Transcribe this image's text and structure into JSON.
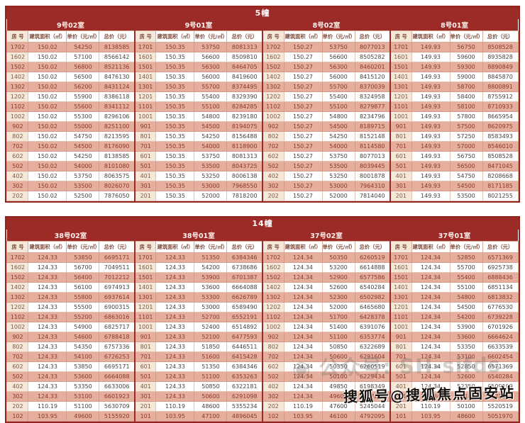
{
  "colors": {
    "accent_red": "#9c2a26",
    "row_pink": "#e5ae9d",
    "room_cream": "#f6e8d8",
    "row_text_pink": "#8a3a2c",
    "row_text_white": "#4a423e"
  },
  "columns": [
    "房 号",
    "建筑面积（㎡）",
    "单价（元/㎡）",
    "总价（元）"
  ],
  "watermarks": {
    "social": "◉ 公众号: SH-sifds",
    "sohu": "搜狐号@搜狐焦点固安站"
  },
  "tables": [
    {
      "title": "5幢",
      "sections": [
        {
          "name": "9号02室",
          "rows": [
            [
              "1702",
              "150.02",
              "54250",
              "8138585"
            ],
            [
              "1602",
              "150.02",
              "57100",
              "8566142"
            ],
            [
              "1502",
              "150.02",
              "56800",
              "8521136"
            ],
            [
              "1402",
              "150.02",
              "56500",
              "8476130"
            ],
            [
              "1302",
              "150.02",
              "56200",
              "8431124"
            ],
            [
              "1202",
              "150.02",
              "55900",
              "8386118"
            ],
            [
              "1102",
              "150.02",
              "55600",
              "8341112"
            ],
            [
              "1002",
              "150.02",
              "55300",
              "8296106"
            ],
            [
              "902",
              "150.02",
              "55000",
              "8251100"
            ],
            [
              "802",
              "150.02",
              "54750",
              "8213595"
            ],
            [
              "702",
              "150.02",
              "54500",
              "8176090"
            ],
            [
              "602",
              "150.02",
              "54250",
              "8138585"
            ],
            [
              "502",
              "150.02",
              "54000",
              "8101080"
            ],
            [
              "402",
              "150.02",
              "53750",
              "8063575"
            ],
            [
              "302",
              "150.02",
              "53500",
              "8026070"
            ],
            [
              "202",
              "150.02",
              "52500",
              "7876050"
            ]
          ]
        },
        {
          "name": "9号01室",
          "rows": [
            [
              "1701",
              "150.35",
              "53750",
              "8081313"
            ],
            [
              "1601",
              "150.35",
              "56600",
              "8509810"
            ],
            [
              "1501",
              "150.35",
              "56300",
              "8464705"
            ],
            [
              "1401",
              "150.35",
              "56000",
              "8419600"
            ],
            [
              "1301",
              "150.35",
              "55700",
              "8374495"
            ],
            [
              "1201",
              "150.35",
              "55400",
              "8329390"
            ],
            [
              "1101",
              "150.35",
              "55100",
              "8284285"
            ],
            [
              "1001",
              "150.35",
              "54800",
              "8239180"
            ],
            [
              "901",
              "150.35",
              "54500",
              "8194075"
            ],
            [
              "801",
              "150.35",
              "54250",
              "8156488"
            ],
            [
              "701",
              "150.35",
              "54000",
              "8118900"
            ],
            [
              "601",
              "150.35",
              "53750",
              "8081313"
            ],
            [
              "501",
              "150.35",
              "53500",
              "8043725"
            ],
            [
              "401",
              "150.35",
              "53250",
              "8006138"
            ],
            [
              "301",
              "150.35",
              "53000",
              "7968550"
            ],
            [
              "201",
              "150.35",
              "52000",
              "7818200"
            ]
          ]
        },
        {
          "name": "8号02室",
          "rows": [
            [
              "1702",
              "150.27",
              "53750",
              "8077013"
            ],
            [
              "1602",
              "150.27",
              "56600",
              "8505282"
            ],
            [
              "1502",
              "150.27",
              "56300",
              "8460201"
            ],
            [
              "1402",
              "150.27",
              "56000",
              "8415120"
            ],
            [
              "1302",
              "150.27",
              "55700",
              "8370039"
            ],
            [
              "1202",
              "150.27",
              "55400",
              "8324958"
            ],
            [
              "1102",
              "150.27",
              "55100",
              "8279877"
            ],
            [
              "1002",
              "150.27",
              "54800",
              "8234796"
            ],
            [
              "902",
              "150.27",
              "54500",
              "8189715"
            ],
            [
              "802",
              "150.27",
              "54250",
              "8152148"
            ],
            [
              "702",
              "150.27",
              "54000",
              "8114580"
            ],
            [
              "602",
              "150.27",
              "53750",
              "8077013"
            ],
            [
              "502",
              "150.27",
              "53500",
              "8039445"
            ],
            [
              "402",
              "150.27",
              "53250",
              "8001878"
            ],
            [
              "302",
              "150.27",
              "53000",
              "7964310"
            ],
            [
              "202",
              "150.27",
              "52000",
              "7814040"
            ]
          ]
        },
        {
          "name": "8号01室",
          "rows": [
            [
              "1701",
              "149.93",
              "56750",
              "8508528"
            ],
            [
              "1601",
              "149.93",
              "59600",
              "8935828"
            ],
            [
              "1501",
              "149.93",
              "59300",
              "8890849"
            ],
            [
              "1401",
              "149.93",
              "59000",
              "8845870"
            ],
            [
              "1301",
              "149.93",
              "58700",
              "8800891"
            ],
            [
              "1201",
              "149.93",
              "58400",
              "8755912"
            ],
            [
              "1101",
              "149.93",
              "58100",
              "8710933"
            ],
            [
              "1001",
              "149.93",
              "57800",
              "8665954"
            ],
            [
              "901",
              "149.93",
              "57500",
              "8620975"
            ],
            [
              "801",
              "149.93",
              "57250",
              "8583493"
            ],
            [
              "701",
              "149.93",
              "57000",
              "8546010"
            ],
            [
              "601",
              "149.93",
              "56750",
              "8508528"
            ],
            [
              "501",
              "149.93",
              "56500",
              "8471045"
            ],
            [
              "401",
              "149.93",
              "54750",
              "8208668"
            ],
            [
              "301",
              "149.93",
              "54500",
              "8171185"
            ],
            [
              "201",
              "149.93",
              "53500",
              "8021255"
            ]
          ]
        }
      ]
    },
    {
      "title": "14幢",
      "sections": [
        {
          "name": "38号02室",
          "rows": [
            [
              "1702",
              "124.33",
              "53850",
              "6695171"
            ],
            [
              "1602",
              "124.33",
              "56700",
              "7049511"
            ],
            [
              "1502",
              "124.33",
              "56400",
              "7012212"
            ],
            [
              "1402",
              "124.33",
              "56100",
              "6974913"
            ],
            [
              "1302",
              "124.33",
              "55800",
              "6937614"
            ],
            [
              "1202",
              "124.33",
              "55500",
              "6900315"
            ],
            [
              "1102",
              "124.33",
              "55200",
              "6863016"
            ],
            [
              "1002",
              "124.33",
              "54900",
              "6825717"
            ],
            [
              "902",
              "124.33",
              "54600",
              "6788418"
            ],
            [
              "802",
              "124.33",
              "54350",
              "6757336"
            ],
            [
              "702",
              "124.33",
              "54100",
              "6726253"
            ],
            [
              "602",
              "124.33",
              "53850",
              "6695171"
            ],
            [
              "502",
              "124.33",
              "53600",
              "6664088"
            ],
            [
              "402",
              "124.33",
              "53350",
              "6633006"
            ],
            [
              "302",
              "124.33",
              "53100",
              "6601923"
            ],
            [
              "202",
              "110.19",
              "51100",
              "5630709"
            ],
            [
              "102",
              "103.95",
              "49600",
              "5155920"
            ]
          ]
        },
        {
          "name": "38号01室",
          "rows": [
            [
              "1701",
              "124.33",
              "51350",
              "6384346"
            ],
            [
              "1601",
              "124.33",
              "54200",
              "6738686"
            ],
            [
              "1501",
              "124.33",
              "53900",
              "6701387"
            ],
            [
              "1401",
              "124.33",
              "53600",
              "6664088"
            ],
            [
              "1301",
              "124.33",
              "53300",
              "6626789"
            ],
            [
              "1201",
              "124.33",
              "53000",
              "6589490"
            ],
            [
              "1101",
              "124.33",
              "52700",
              "6552191"
            ],
            [
              "1001",
              "124.33",
              "52400",
              "6514892"
            ],
            [
              "901",
              "124.33",
              "52100",
              "6477593"
            ],
            [
              "801",
              "124.33",
              "51850",
              "6446511"
            ],
            [
              "701",
              "124.33",
              "51600",
              "6415428"
            ],
            [
              "601",
              "124.33",
              "51350",
              "6384346"
            ],
            [
              "501",
              "124.33",
              "51100",
              "6353263"
            ],
            [
              "401",
              "124.33",
              "50850",
              "6322181"
            ],
            [
              "301",
              "124.33",
              "50600",
              "6291098"
            ],
            [
              "201",
              "110.19",
              "48600",
              "5355234"
            ],
            [
              "101",
              "103.95",
              "47100",
              "4896045"
            ]
          ]
        },
        {
          "name": "37号02室",
          "rows": [
            [
              "1702",
              "124.34",
              "50350",
              "6260519"
            ],
            [
              "1602",
              "124.34",
              "53200",
              "6614888"
            ],
            [
              "1502",
              "124.34",
              "52900",
              "6577586"
            ],
            [
              "1402",
              "124.34",
              "52600",
              "6540284"
            ],
            [
              "1302",
              "124.34",
              "52300",
              "6502982"
            ],
            [
              "1202",
              "124.34",
              "52000",
              "6465680"
            ],
            [
              "1102",
              "124.34",
              "51700",
              "6428378"
            ],
            [
              "1002",
              "124.34",
              "51400",
              "6391076"
            ],
            [
              "902",
              "124.34",
              "51100",
              "6353774"
            ],
            [
              "802",
              "124.34",
              "50850",
              "6322689"
            ],
            [
              "702",
              "124.34",
              "50600",
              "6291604"
            ],
            [
              "602",
              "124.34",
              "50350",
              "6260519"
            ],
            [
              "502",
              "124.34",
              "50100",
              "6229434"
            ],
            [
              "402",
              "124.34",
              "49850",
              "6198349"
            ],
            [
              "302",
              "124.34",
              "49600",
              "6167264"
            ],
            [
              "202",
              "110.19",
              "47600",
              "5245044"
            ],
            [
              "102",
              "103.95",
              "46100",
              "4792095"
            ]
          ]
        },
        {
          "name": "37号01室",
          "rows": [
            [
              "1701",
              "124.34",
              "52850",
              "6571369"
            ],
            [
              "1601",
              "124.34",
              "55700",
              "6925738"
            ],
            [
              "1501",
              "124.34",
              "55400",
              "6888436"
            ],
            [
              "1401",
              "124.34",
              "55100",
              "6851134"
            ],
            [
              "1301",
              "124.34",
              "54800",
              "6813832"
            ],
            [
              "1201",
              "124.34",
              "54500",
              "6776530"
            ],
            [
              "1101",
              "124.34",
              "54200",
              "6739228"
            ],
            [
              "1001",
              "124.34",
              "53900",
              "6701926"
            ],
            [
              "901",
              "124.34",
              "53600",
              "6664624"
            ],
            [
              "801",
              "124.34",
              "53350",
              "6633539"
            ],
            [
              "701",
              "124.34",
              "53100",
              "6602454"
            ],
            [
              "601",
              "124.34",
              "52850",
              "6571369"
            ],
            [
              "501",
              "124.34",
              "52600",
              "6540284"
            ],
            [
              "401",
              "124.34",
              "52350",
              "6509199"
            ],
            [
              "301",
              "124.34",
              "52100",
              "6478114"
            ],
            [
              "201",
              "110.19",
              "50100",
              "5520519"
            ],
            [
              "101",
              "103.95",
              "48600",
              "5051970"
            ]
          ]
        }
      ]
    }
  ]
}
